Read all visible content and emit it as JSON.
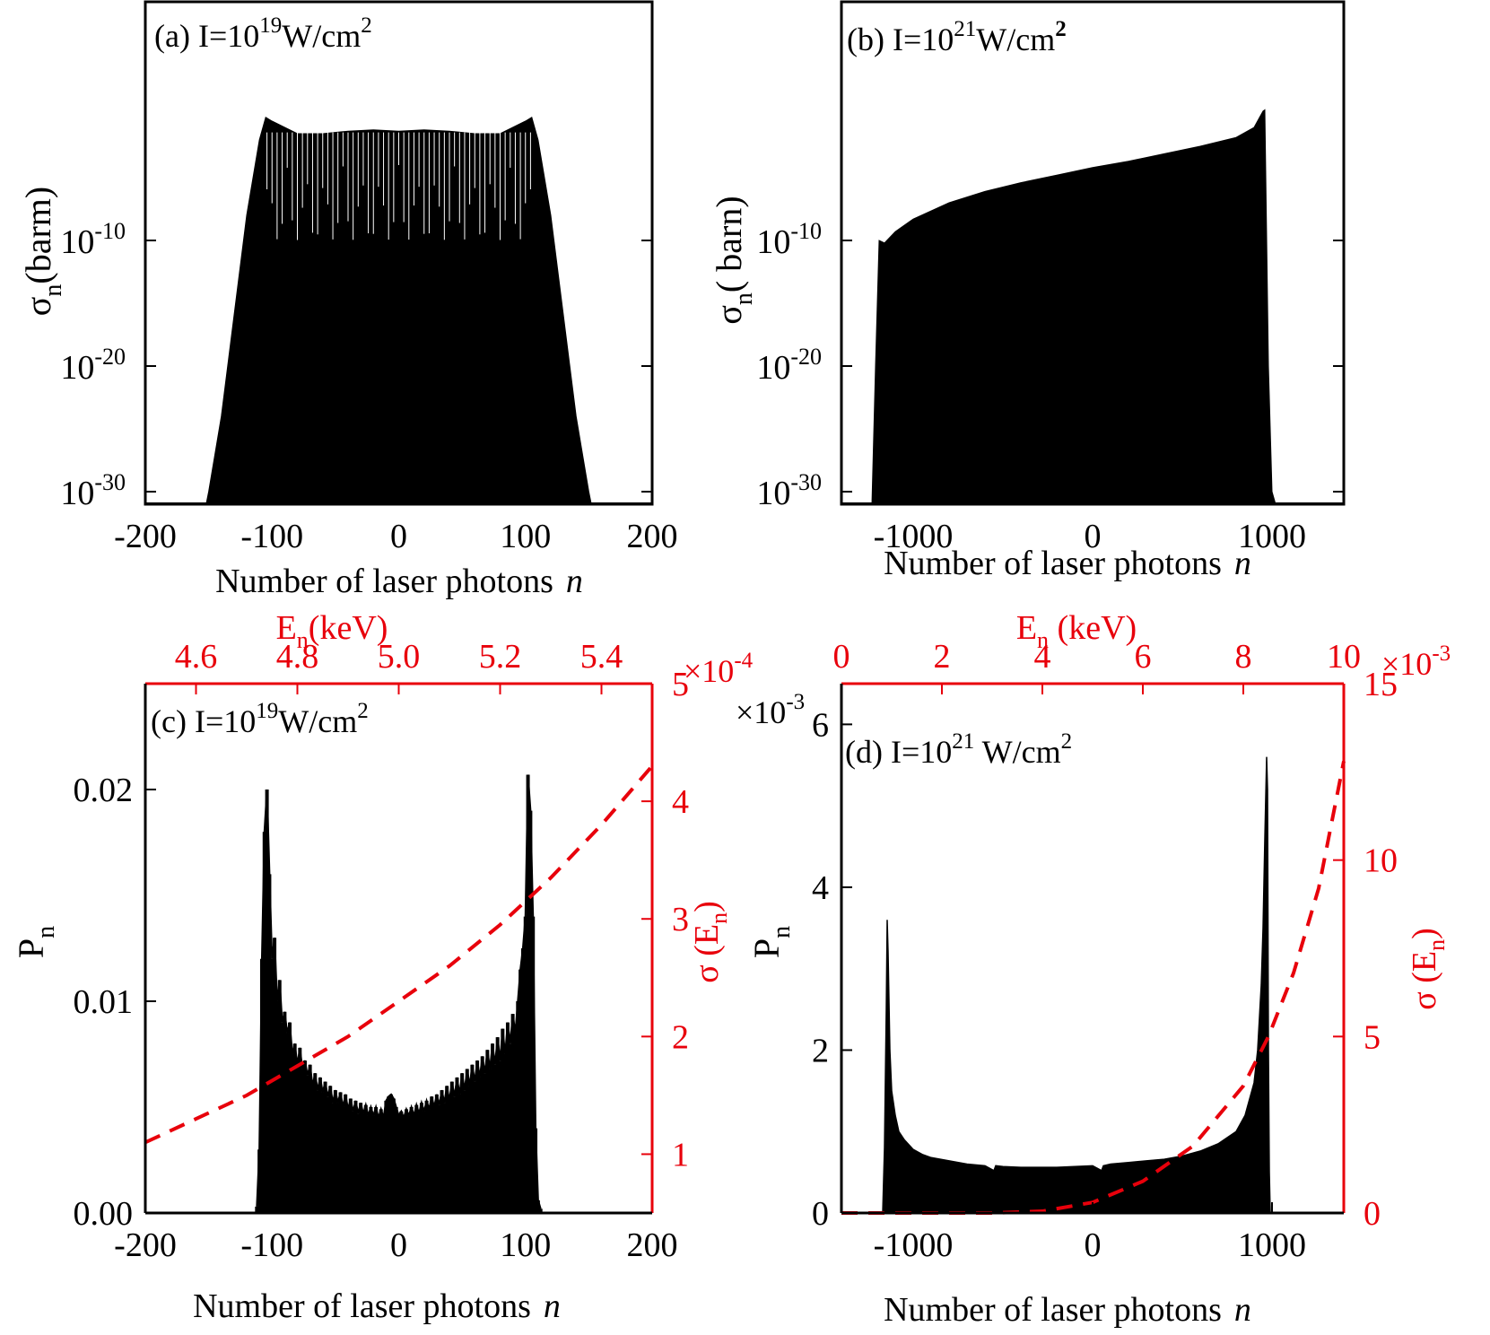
{
  "chart_data": [
    {
      "id": "a",
      "type": "area",
      "panel_label": "(a) I=10",
      "panel_label_sup": "19",
      "panel_label_tail": "W/cm",
      "panel_label_tail_sup": "2",
      "xlabel": "Number of laser photons",
      "xlabel_var": "n",
      "ylabel": "σ",
      "ylabel_sub": "n",
      "ylabel_tail": "(barm)",
      "xlim": [
        -200,
        200
      ],
      "ylog": true,
      "ylim_exp": [
        -31,
        9
      ],
      "xticks": [
        "-200",
        "-100",
        "0",
        "100",
        "200"
      ],
      "xtick_values": [
        -200,
        -100,
        0,
        100,
        200
      ],
      "yticks_exp": [
        "-10",
        "-20",
        "-30"
      ],
      "ytick_values_exp": [
        -10,
        -20,
        -30
      ],
      "envelope_x": [
        -152,
        -150,
        -140,
        -130,
        -120,
        -110,
        -105,
        -100,
        -80,
        -60,
        -40,
        -20,
        0,
        20,
        40,
        60,
        80,
        100,
        105,
        110,
        120,
        130,
        140,
        150,
        152
      ],
      "envelope_log_y": [
        -31,
        -30,
        -24,
        -16,
        -8,
        -2,
        -0.2,
        -0.5,
        -1.5,
        -1.5,
        -1.3,
        -1.2,
        -1.3,
        -1.2,
        -1.3,
        -1.5,
        -1.5,
        -0.5,
        -0.2,
        -2,
        -8,
        -16,
        -24,
        -30,
        -31
      ],
      "series_color": "#000000"
    },
    {
      "id": "b",
      "type": "area",
      "panel_label": "(b) I=10",
      "panel_label_sup": "21",
      "panel_label_tail": "W/cm",
      "panel_label_tail_sup": "2",
      "xlabel": "Number of laser photons",
      "xlabel_var": "n",
      "ylabel": "σ",
      "ylabel_sub": "n",
      "ylabel_tail": "( barn)",
      "xlim": [
        -1400,
        1400
      ],
      "ylog": true,
      "ylim_exp": [
        -31,
        9
      ],
      "xticks": [
        "-1000",
        "0",
        "1000"
      ],
      "xtick_values": [
        -1000,
        0,
        1000
      ],
      "yticks_exp": [
        "-10",
        "-20",
        "-30"
      ],
      "ytick_values_exp": [
        -10,
        -20,
        -30
      ],
      "envelope_x": [
        -1230,
        -1210,
        -1190,
        -1160,
        -1100,
        -1000,
        -800,
        -600,
        -400,
        -200,
        0,
        200,
        400,
        600,
        800,
        900,
        950,
        960,
        980,
        1000,
        1020
      ],
      "envelope_log_y": [
        -31,
        -20,
        -10,
        -10.2,
        -9.3,
        -8.3,
        -7.0,
        -6.1,
        -5.4,
        -4.8,
        -4.2,
        -3.7,
        -3.1,
        -2.5,
        -1.8,
        -1.0,
        0.3,
        0.4,
        -20,
        -30,
        -31
      ],
      "series_color": "#000000"
    },
    {
      "id": "c",
      "type": "line",
      "panel_label": "(c) I=10",
      "panel_label_sup": "19",
      "panel_label_tail": "W/cm",
      "panel_label_tail_sup": "2",
      "xlabel": "Number of laser photons",
      "xlabel_var": "n",
      "ylabel": "P",
      "ylabel_sub": "n",
      "y2label": "σ (E",
      "y2label_sub": "n",
      "y2label_tail": ")",
      "top_xlabel": "E",
      "top_xlabel_sub": "n",
      "top_xlabel_tail": "(keV)",
      "xlim": [
        -200,
        200
      ],
      "ylim": [
        0,
        0.025
      ],
      "y2lim": [
        0.5,
        5
      ],
      "top_xlim": [
        4.5,
        5.5
      ],
      "xticks": [
        "-200",
        "-100",
        "0",
        "100",
        "200"
      ],
      "xtick_values": [
        -200,
        -100,
        0,
        100,
        200
      ],
      "yticks": [
        "0.00",
        "0.01",
        "0.02"
      ],
      "ytick_values": [
        0,
        0.01,
        0.02
      ],
      "y2ticks": [
        "1",
        "2",
        "3",
        "4",
        "5"
      ],
      "y2tick_values": [
        1,
        2,
        3,
        4,
        5
      ],
      "top_xticks": [
        "4.6",
        "4.8",
        "5.0",
        "5.2",
        "5.4"
      ],
      "top_xtick_values": [
        4.6,
        4.8,
        5.0,
        5.2,
        5.4
      ],
      "y2_multiplier": "×10",
      "y2_multiplier_exp": "-4",
      "series": [
        {
          "kind": "spikes",
          "color": "#000000",
          "x": [
            -112,
            -110,
            -108,
            -106,
            -104,
            -102,
            -100,
            -98,
            -96,
            -94,
            -92,
            -90,
            -88,
            -86,
            -84,
            -82,
            -80,
            -78,
            -76,
            -74,
            -72,
            -70,
            -68,
            -66,
            -64,
            -62,
            -60,
            -58,
            -56,
            -54,
            -52,
            -50,
            -48,
            -46,
            -44,
            -42,
            -40,
            -38,
            -36,
            -34,
            -32,
            -30,
            -28,
            -26,
            -24,
            -22,
            -20,
            -18,
            -16,
            -14,
            -12,
            -10,
            -8,
            -6,
            -4,
            -2,
            0,
            2,
            4,
            6,
            8,
            10,
            12,
            14,
            16,
            18,
            20,
            22,
            24,
            26,
            28,
            30,
            32,
            34,
            36,
            38,
            40,
            42,
            44,
            46,
            48,
            50,
            52,
            54,
            56,
            58,
            60,
            62,
            64,
            66,
            68,
            70,
            72,
            74,
            76,
            78,
            80,
            82,
            84,
            86,
            88,
            90,
            92,
            94,
            96,
            98,
            100,
            102,
            104,
            106,
            108,
            110,
            112
          ],
          "y": [
            0.0003,
            0.003,
            0.012,
            0.018,
            0.02,
            0.016,
            0.012,
            0.013,
            0.01,
            0.011,
            0.009,
            0.0095,
            0.0085,
            0.009,
            0.0075,
            0.008,
            0.007,
            0.0078,
            0.0068,
            0.0072,
            0.0065,
            0.007,
            0.006,
            0.0066,
            0.0058,
            0.0064,
            0.0057,
            0.0062,
            0.0055,
            0.006,
            0.0052,
            0.0058,
            0.0052,
            0.0057,
            0.005,
            0.0056,
            0.0049,
            0.0054,
            0.0048,
            0.0053,
            0.0047,
            0.0052,
            0.0047,
            0.0051,
            0.0046,
            0.005,
            0.0046,
            0.005,
            0.0045,
            0.0049,
            0.0045,
            0.0053,
            0.0055,
            0.0056,
            0.0054,
            0.005,
            0.0046,
            0.0048,
            0.0045,
            0.0049,
            0.0046,
            0.005,
            0.0046,
            0.0051,
            0.0047,
            0.0052,
            0.0048,
            0.0053,
            0.0049,
            0.0055,
            0.005,
            0.0056,
            0.0051,
            0.0058,
            0.0052,
            0.006,
            0.0053,
            0.0062,
            0.0055,
            0.0064,
            0.0056,
            0.0066,
            0.0058,
            0.0068,
            0.006,
            0.007,
            0.0062,
            0.0072,
            0.0064,
            0.0074,
            0.0066,
            0.0077,
            0.0068,
            0.008,
            0.007,
            0.0083,
            0.0072,
            0.0087,
            0.0075,
            0.009,
            0.008,
            0.0094,
            0.0085,
            0.01,
            0.0115,
            0.0125,
            0.014,
            0.0207,
            0.019,
            0.014,
            0.004,
            0.0006,
            0.0002
          ]
        },
        {
          "kind": "dashed",
          "color": "#e8000b",
          "axis": "top-right",
          "x_energy_keV": [
            4.5,
            4.6,
            4.7,
            4.8,
            4.9,
            5.0,
            5.1,
            5.2,
            5.3,
            5.4,
            5.5
          ],
          "y": [
            1.1,
            1.3,
            1.5,
            1.75,
            2.0,
            2.3,
            2.6,
            2.95,
            3.35,
            3.8,
            4.3
          ]
        }
      ]
    },
    {
      "id": "d",
      "type": "line",
      "panel_label": "(d) I=10",
      "panel_label_sup": "21",
      "panel_label_tail": " W/cm",
      "panel_label_tail_sup": "2",
      "xlabel": "Number of laser photons",
      "xlabel_var": "n",
      "ylabel": "P",
      "ylabel_sub": "n",
      "y2label": "σ (E",
      "y2label_sub": "n",
      "y2label_tail": ")",
      "top_xlabel": "E",
      "top_xlabel_sub": "n",
      "top_xlabel_tail": " (keV)",
      "xlim": [
        -1400,
        1400
      ],
      "ylim": [
        0,
        6.5
      ],
      "y2lim": [
        0,
        15
      ],
      "top_xlim": [
        0,
        10
      ],
      "xticks": [
        "-1000",
        "0",
        "1000"
      ],
      "xtick_values": [
        -1000,
        0,
        1000
      ],
      "yticks": [
        "0",
        "2",
        "4",
        "6"
      ],
      "ytick_values": [
        0,
        2,
        4,
        6
      ],
      "y2ticks": [
        "0",
        "5",
        "10",
        "15"
      ],
      "y2tick_values": [
        0,
        5,
        10,
        15
      ],
      "top_xticks": [
        "0",
        "2",
        "4",
        "6",
        "8",
        "10"
      ],
      "top_xtick_values": [
        0,
        2,
        4,
        6,
        8,
        10
      ],
      "y_multiplier": "×10",
      "y_multiplier_exp": "-3",
      "y2_multiplier": "×10",
      "y2_multiplier_exp": "-3",
      "series": [
        {
          "kind": "filled",
          "color": "#000000",
          "x": [
            -1170,
            -1160,
            -1150,
            -1145,
            -1140,
            -1130,
            -1120,
            -1100,
            -1080,
            -1050,
            -1000,
            -950,
            -900,
            -800,
            -700,
            -600,
            -550,
            -540,
            -500,
            -400,
            -300,
            -200,
            -100,
            0,
            50,
            60,
            100,
            200,
            300,
            400,
            500,
            600,
            700,
            800,
            850,
            900,
            920,
            940,
            950,
            960,
            970,
            975,
            980,
            985,
            990
          ],
          "y": [
            0,
            0.8,
            2.5,
            3.6,
            3.2,
            2.0,
            1.5,
            1.2,
            1.0,
            0.9,
            0.78,
            0.72,
            0.68,
            0.64,
            0.6,
            0.58,
            0.52,
            0.58,
            0.57,
            0.56,
            0.56,
            0.56,
            0.57,
            0.58,
            0.52,
            0.58,
            0.6,
            0.62,
            0.64,
            0.66,
            0.7,
            0.76,
            0.85,
            1.0,
            1.2,
            1.6,
            2.0,
            2.8,
            3.5,
            4.6,
            5.6,
            5.2,
            2.0,
            0.5,
            0
          ]
        },
        {
          "kind": "dashed",
          "color": "#e8000b",
          "axis": "top-right",
          "x_energy_keV": [
            0,
            1,
            2,
            3,
            4,
            5,
            6,
            7,
            8,
            8.5,
            9,
            9.5,
            10
          ],
          "y": [
            0,
            0,
            0,
            0,
            0.05,
            0.3,
            0.9,
            1.9,
            3.6,
            5.0,
            6.8,
            9.2,
            12.8
          ]
        }
      ]
    }
  ]
}
